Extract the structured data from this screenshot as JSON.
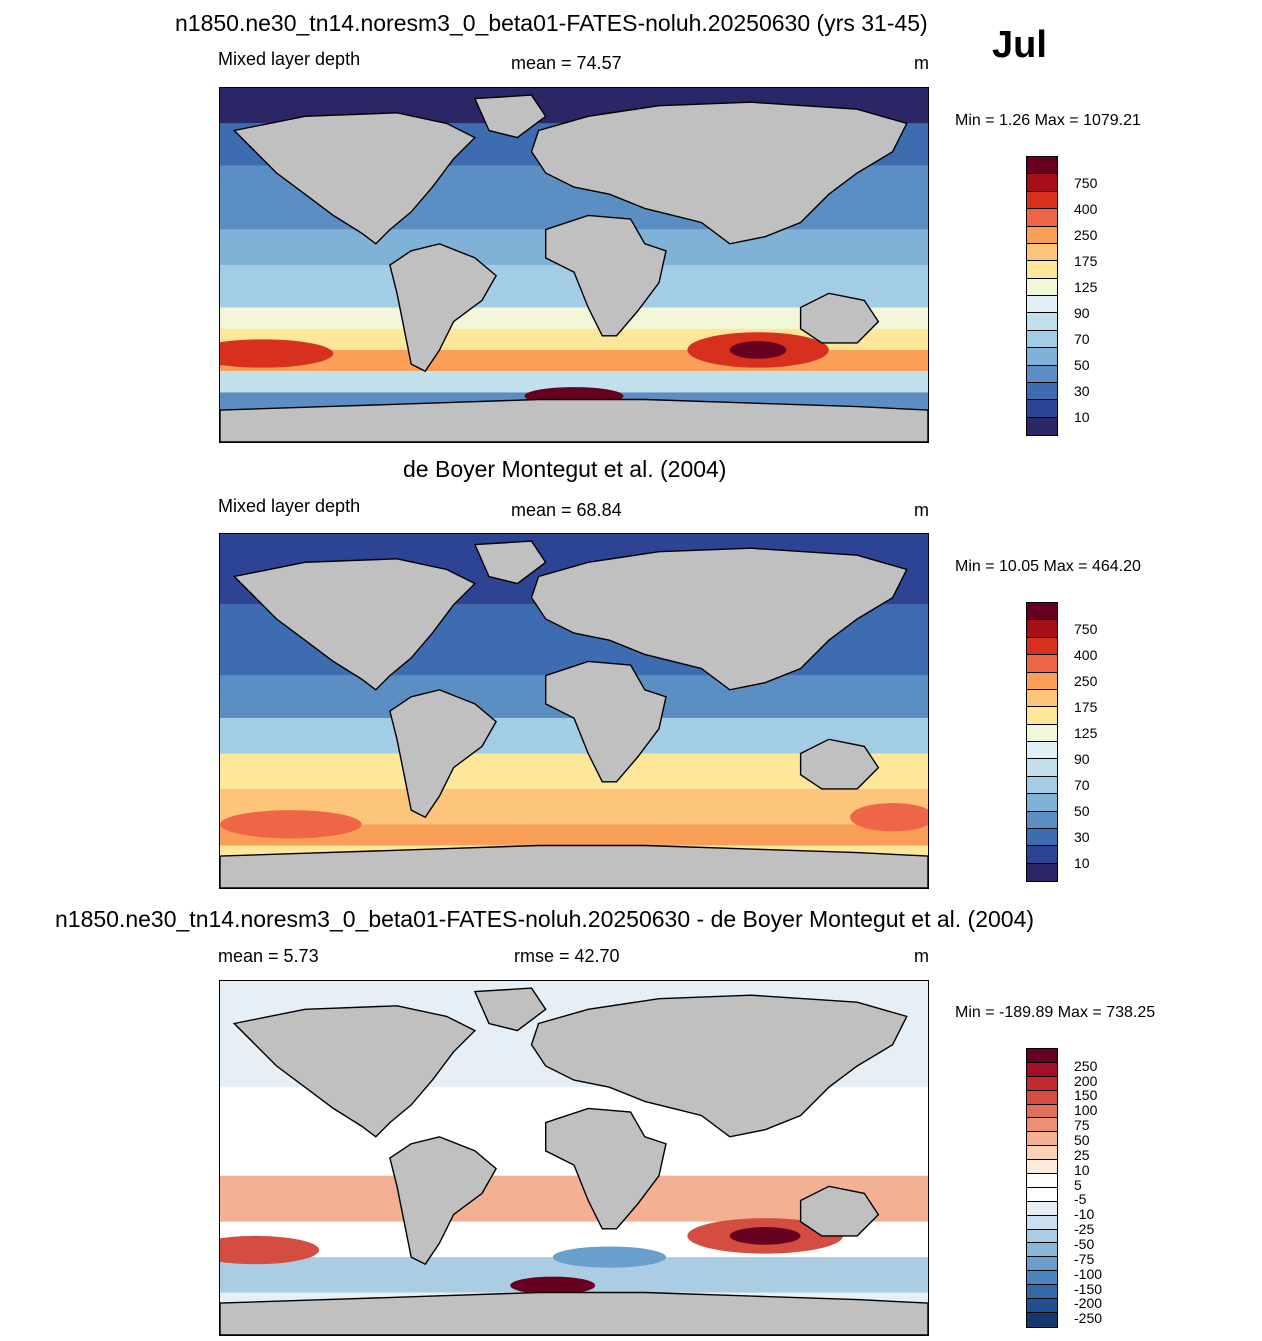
{
  "top_title": "n1850.ne30_tn14.noresm3_0_beta01-FATES-noluh.20250630 (yrs 31-45)",
  "month": "Jul",
  "panels": [
    {
      "title": "",
      "left_label": "Mixed layer depth",
      "center_label": "mean =  74.57",
      "right_label": "m",
      "minmax": "Min =   1.26 Max = 1079.21",
      "variant": "model"
    },
    {
      "title": "de Boyer Montegut et al. (2004)",
      "left_label": "Mixed layer depth",
      "center_label": "mean =  68.84",
      "right_label": "m",
      "minmax": "Min =  10.05 Max = 464.20",
      "variant": "obs"
    },
    {
      "title": "n1850.ne30_tn14.noresm3_0_beta01-FATES-noluh.20250630 - de Boyer Montegut et al. (2004)",
      "left_label": "mean =   5.73",
      "center_label": "rmse =  42.70",
      "right_label": "m",
      "minmax": "Min = -189.89 Max = 738.25",
      "variant": "diff"
    }
  ],
  "colorbars": {
    "absolute": {
      "labels": [
        "750",
        "400",
        "250",
        "175",
        "125",
        "90",
        "70",
        "50",
        "30",
        "10"
      ],
      "colors": [
        "#67001f",
        "#a50f15",
        "#d7301f",
        "#ef6548",
        "#f99f58",
        "#fdc57a",
        "#fee79b",
        "#f1f7d8",
        "#e1f0f6",
        "#c2dfec",
        "#a2cde4",
        "#7fb2d6",
        "#5b8fc4",
        "#3d6cb0",
        "#2c4493",
        "#2b2767"
      ]
    },
    "difference": {
      "labels": [
        "250",
        "200",
        "150",
        "100",
        "75",
        "50",
        "25",
        "10",
        "5",
        "-5",
        "-10",
        "-25",
        "-50",
        "-75",
        "-100",
        "-150",
        "-200",
        "-250"
      ],
      "colors": [
        "#67001f",
        "#a50f26",
        "#c32a2c",
        "#d44d41",
        "#e0705a",
        "#ea9077",
        "#f3b193",
        "#f9d0b8",
        "#fdebde",
        "#ffffff",
        "#ffffff",
        "#e6eff6",
        "#cbe0ef",
        "#abcde4",
        "#8ab8da",
        "#6a9fcd",
        "#4c85bd",
        "#3269a8",
        "#1f4f8e",
        "#15386f"
      ]
    }
  },
  "map_colors": {
    "land": "#c0c0c0",
    "deep_blue": "#2b2f7a",
    "mid_blue": "#3d5fa6"
  }
}
